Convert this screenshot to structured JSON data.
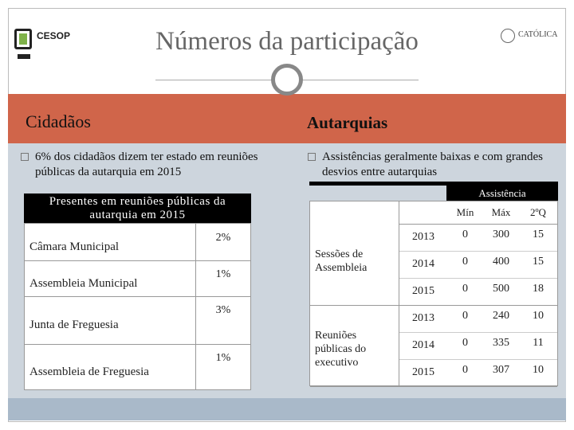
{
  "header": {
    "title": "Números da participação",
    "logo_left": "CESOP",
    "logo_right": "CATÓLICA"
  },
  "left": {
    "heading": "Cidadãos",
    "bullet": "6% dos cidadãos dizem ter estado em reuniões públicas da autarquia em 2015",
    "table": {
      "title": "Presentes em reuniões públicas da autarquia em 2015",
      "rows": [
        [
          "Câmara Municipal",
          "2%"
        ],
        [
          "Assembleia Municipal",
          "1%"
        ],
        [
          "Junta de Freguesia",
          "3%"
        ],
        [
          "Assembleia de Freguesia",
          "1%"
        ]
      ]
    }
  },
  "right": {
    "heading": "Autarquias",
    "bullet": "Assistências geralmente baixas e com grandes desvios entre autarquias",
    "table": {
      "group_header": "Assistência",
      "columns": [
        "Mín",
        "Máx",
        "2ºQ"
      ],
      "groups": [
        {
          "label": "Sessões de Assembleia",
          "rows": [
            [
              "2013",
              0,
              300,
              15
            ],
            [
              "2014",
              0,
              400,
              15
            ],
            [
              "2015",
              0,
              500,
              18
            ]
          ]
        },
        {
          "label": "Reuniões públicas do executivo",
          "rows": [
            [
              "2013",
              0,
              240,
              10
            ],
            [
              "2014",
              0,
              335,
              11
            ],
            [
              "2015",
              0,
              307,
              10
            ]
          ]
        }
      ]
    }
  }
}
